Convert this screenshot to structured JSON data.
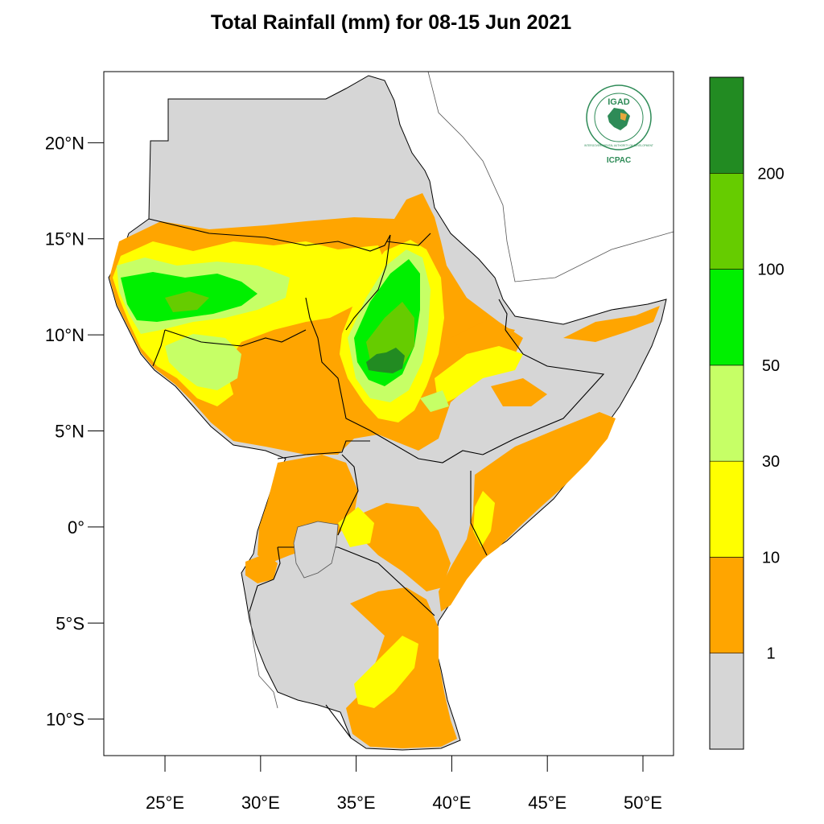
{
  "title": "Total Rainfall (mm) for 08-15 Jun 2021",
  "map": {
    "lon_range": [
      21.8,
      51.6
    ],
    "lat_range": [
      -11.9,
      23.7
    ],
    "background_color": "#d6d6d6",
    "lat_ticks": [
      {
        "value": 20,
        "label": "20°N"
      },
      {
        "value": 15,
        "label": "15°N"
      },
      {
        "value": 10,
        "label": "10°N"
      },
      {
        "value": 5,
        "label": "5°N"
      },
      {
        "value": 0,
        "label": "0°"
      },
      {
        "value": -5,
        "label": "5°S"
      },
      {
        "value": -10,
        "label": "10°S"
      }
    ],
    "lon_ticks": [
      {
        "value": 25,
        "label": "25°E"
      },
      {
        "value": 30,
        "label": "30°E"
      },
      {
        "value": 35,
        "label": "35°E"
      },
      {
        "value": 40,
        "label": "40°E"
      },
      {
        "value": 45,
        "label": "45°E"
      },
      {
        "value": 50,
        "label": "50°E"
      }
    ]
  },
  "legend": {
    "bins": [
      {
        "color": "#d6d6d6",
        "label": "1"
      },
      {
        "color": "#ffa500",
        "label": "10"
      },
      {
        "color": "#ffff00",
        "label": "30"
      },
      {
        "color": "#c6ff66",
        "label": "50"
      },
      {
        "color": "#00f000",
        "label": "100"
      },
      {
        "color": "#66cc00",
        "label": "200"
      },
      {
        "color": "#228b22",
        "label": ""
      }
    ]
  },
  "logo": {
    "name": "IGAD",
    "subtitle": "ICPAC",
    "ring_text": "INTERGOVERNMENTAL AUTHORITY ON DEVELOPMENT",
    "color": "#2e8b57"
  }
}
